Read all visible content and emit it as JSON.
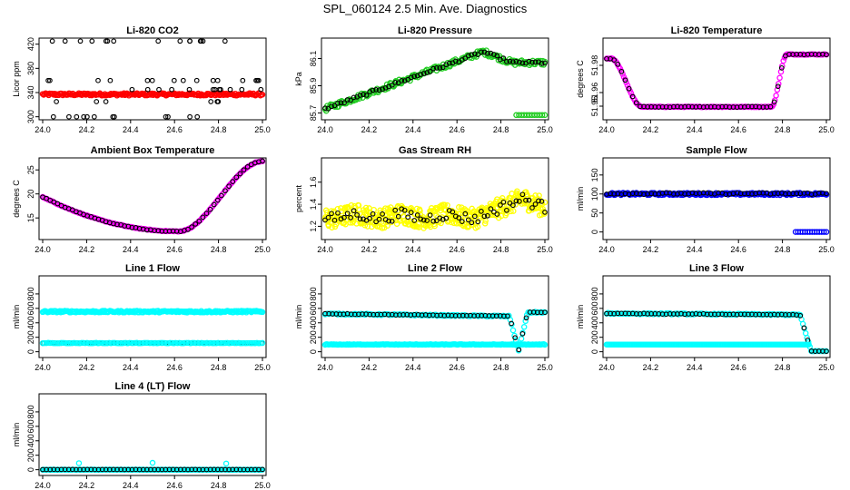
{
  "title": "SPL_060124  2.5 Min. Ave. Diagnostics",
  "colors": {
    "black": "#000000",
    "red": "#ff0000",
    "green": "#22cc22",
    "magenta": "#ff00ff",
    "yellow": "#ffff00",
    "blue": "#0000ff",
    "cyan": "#00ffff"
  },
  "chart_data": [
    {
      "type": "scatter",
      "title": "Li-820 CO2",
      "ylabel": "Licor ppm",
      "xlim": [
        24.0,
        25.0
      ],
      "ylim": [
        295,
        430
      ],
      "xticks": [
        "24.0",
        "24.2",
        "24.4",
        "24.6",
        "24.8",
        "25.0"
      ],
      "yticks": [
        {
          "v": 300,
          "l": "300"
        },
        {
          "v": 340,
          "l": "340"
        },
        {
          "v": 380,
          "l": "380"
        },
        {
          "v": 420,
          "l": "420"
        }
      ],
      "series": [
        {
          "name": "instant",
          "color": "red",
          "pattern": "flat",
          "a": 337,
          "b": 0,
          "noise": 2,
          "n": 220
        },
        {
          "name": "average",
          "color": "black",
          "pattern": "levels",
          "levels": [
            300,
            325,
            345,
            360,
            425
          ],
          "n": 60
        }
      ]
    },
    {
      "type": "scatter",
      "title": "Li-820 Pressure",
      "ylabel": "kPa",
      "xlim": [
        24.0,
        25.0
      ],
      "ylim": [
        85.65,
        86.25
      ],
      "xticks": [
        "24.0",
        "24.2",
        "24.4",
        "24.6",
        "24.8",
        "25.0"
      ],
      "yticks": [
        {
          "v": 85.7,
          "l": "85.7"
        },
        {
          "v": 85.9,
          "l": "85.9"
        },
        {
          "v": 86.1,
          "l": "86.1"
        }
      ],
      "series": [
        {
          "name": "instant",
          "color": "green",
          "pattern": "pressure",
          "noise": 0.02,
          "n": 200
        },
        {
          "name": "average",
          "color": "black",
          "pattern": "pressure",
          "noise": 0.01,
          "n": 70
        },
        {
          "name": "dropouts",
          "color": "green",
          "pattern": "segment",
          "x0": 24.87,
          "x1": 25.0,
          "a": 85.68,
          "b": 0.005,
          "n": 12
        }
      ]
    },
    {
      "type": "scatter",
      "title": "Li-820 Temperature",
      "ylabel": "degrees C",
      "xlim": [
        24.0,
        25.0
      ],
      "ylim": [
        51.94,
        52.0
      ],
      "xticks": [
        "24.0",
        "24.2",
        "24.4",
        "24.6",
        "24.8",
        "25.0"
      ],
      "yticks": [
        {
          "v": 51.95,
          "l": "51.95"
        },
        {
          "v": 51.96,
          "l": "51.96"
        },
        {
          "v": 51.98,
          "l": "51.98"
        }
      ],
      "series": [
        {
          "name": "instant",
          "color": "magenta",
          "pattern": "ltemp",
          "n": 180
        },
        {
          "name": "average",
          "color": "black",
          "pattern": "ltemp",
          "n": 60
        }
      ]
    },
    {
      "type": "scatter",
      "title": "Ambient Box Temperature",
      "ylabel": "degrees C",
      "xlim": [
        24.0,
        25.0
      ],
      "ylim": [
        10.5,
        27.5
      ],
      "xticks": [
        "24.0",
        "24.2",
        "24.4",
        "24.6",
        "24.8",
        "25.0"
      ],
      "yticks": [
        {
          "v": 15,
          "l": "15"
        },
        {
          "v": 20,
          "l": "20"
        },
        {
          "v": 25,
          "l": "25"
        }
      ],
      "series": [
        {
          "name": "instant",
          "color": "magenta",
          "pattern": "btemp",
          "n": 160
        },
        {
          "name": "average",
          "color": "black",
          "pattern": "btemp",
          "n": 60
        }
      ]
    },
    {
      "type": "scatter",
      "title": "Gas Stream RH",
      "ylabel": "percent",
      "xlim": [
        24.0,
        25.0
      ],
      "ylim": [
        1.08,
        1.82
      ],
      "xticks": [
        "24.0",
        "24.2",
        "24.4",
        "24.6",
        "24.8",
        "25.0"
      ],
      "yticks": [
        {
          "v": 1.2,
          "l": "1.2"
        },
        {
          "v": 1.4,
          "l": "1.4"
        },
        {
          "v": 1.6,
          "l": "1.6"
        }
      ],
      "series": [
        {
          "name": "instant",
          "color": "yellow",
          "pattern": "rh",
          "noise": 0.09,
          "n": 420
        },
        {
          "name": "average",
          "color": "black",
          "pattern": "rh",
          "noise": 0.05,
          "n": 70
        }
      ]
    },
    {
      "type": "scatter",
      "title": "Sample Flow",
      "ylabel": "ml/min",
      "xlim": [
        24.0,
        25.0
      ],
      "ylim": [
        -20,
        195
      ],
      "xticks": [
        "24.0",
        "24.2",
        "24.4",
        "24.6",
        "24.8",
        "25.0"
      ],
      "yticks": [
        {
          "v": 0,
          "l": "0"
        },
        {
          "v": 50,
          "l": "50"
        },
        {
          "v": 100,
          "l": "100"
        },
        {
          "v": 150,
          "l": "150"
        }
      ],
      "series": [
        {
          "name": "instant",
          "color": "blue",
          "pattern": "flat",
          "a": 100,
          "b": 0,
          "noise": 3,
          "n": 200
        },
        {
          "name": "average",
          "color": "black",
          "pattern": "flat",
          "a": 101,
          "b": 0,
          "noise": 2,
          "n": 60
        },
        {
          "name": "dropouts",
          "color": "blue",
          "pattern": "segment",
          "x0": 24.86,
          "x1": 25.0,
          "a": 0,
          "b": 0,
          "n": 14
        }
      ]
    },
    {
      "type": "scatter",
      "title": "Line 1 Flow",
      "ylabel": "ml/min",
      "xlim": [
        24.0,
        25.0
      ],
      "ylim": [
        -80,
        1050
      ],
      "xticks": [
        "24.0",
        "24.2",
        "24.4",
        "24.6",
        "24.8",
        "25.0"
      ],
      "yticks": [
        {
          "v": 0,
          "l": "0"
        },
        {
          "v": 200,
          "l": "200"
        },
        {
          "v": 400,
          "l": "400"
        },
        {
          "v": 600,
          "l": "600"
        },
        {
          "v": 800,
          "l": "800"
        }
      ],
      "series": [
        {
          "name": "instant",
          "color": "cyan",
          "pattern": "flat",
          "a": 555,
          "b": 0,
          "noise": 12,
          "n": 220
        },
        {
          "name": "average",
          "color": "black",
          "pattern": "flat",
          "a": 120,
          "b": 0,
          "noise": 3,
          "n": 60
        },
        {
          "name": "instant-low",
          "color": "cyan",
          "pattern": "flat",
          "a": 120,
          "b": 0,
          "noise": 3,
          "n": 120
        }
      ]
    },
    {
      "type": "scatter",
      "title": "Line 2 Flow",
      "ylabel": "ml/min",
      "xlim": [
        24.0,
        25.0
      ],
      "ylim": [
        -80,
        1050
      ],
      "xticks": [
        "24.0",
        "24.2",
        "24.4",
        "24.6",
        "24.8",
        "25.0"
      ],
      "yticks": [
        {
          "v": 0,
          "l": "0"
        },
        {
          "v": 200,
          "l": "200"
        },
        {
          "v": 400,
          "l": "400"
        },
        {
          "v": 600,
          "l": "600"
        },
        {
          "v": 800,
          "l": "800"
        }
      ],
      "series": [
        {
          "name": "instant-high",
          "color": "cyan",
          "pattern": "line2",
          "noise": 8,
          "n": 160
        },
        {
          "name": "average",
          "color": "black",
          "pattern": "line2",
          "noise": 4,
          "n": 60
        },
        {
          "name": "instant-low",
          "color": "cyan",
          "pattern": "flat",
          "a": 100,
          "b": 0,
          "noise": 4,
          "n": 200
        }
      ]
    },
    {
      "type": "scatter",
      "title": "Line 3 Flow",
      "ylabel": "ml/min",
      "xlim": [
        24.0,
        25.0
      ],
      "ylim": [
        -80,
        1050
      ],
      "xticks": [
        "24.0",
        "24.2",
        "24.4",
        "24.6",
        "24.8",
        "25.0"
      ],
      "yticks": [
        {
          "v": 0,
          "l": "0"
        },
        {
          "v": 200,
          "l": "200"
        },
        {
          "v": 400,
          "l": "400"
        },
        {
          "v": 600,
          "l": "600"
        },
        {
          "v": 800,
          "l": "800"
        }
      ],
      "series": [
        {
          "name": "instant-high",
          "color": "cyan",
          "pattern": "line3",
          "noise": 8,
          "n": 160
        },
        {
          "name": "average",
          "color": "black",
          "pattern": "line3",
          "noise": 4,
          "n": 60
        },
        {
          "name": "instant-low",
          "color": "cyan",
          "pattern": "segment",
          "x0": 24.0,
          "x1": 24.92,
          "a": 100,
          "b": 0,
          "n": 180
        }
      ]
    },
    {
      "type": "scatter",
      "title": "Line 4 (LT) Flow",
      "ylabel": "ml/min",
      "xlim": [
        24.0,
        25.0
      ],
      "ylim": [
        -80,
        1050
      ],
      "xticks": [
        "24.0",
        "24.2",
        "24.4",
        "24.6",
        "24.8",
        "25.0"
      ],
      "yticks": [
        {
          "v": 0,
          "l": "0"
        },
        {
          "v": 200,
          "l": "200"
        },
        {
          "v": 400,
          "l": "400"
        },
        {
          "v": 600,
          "l": "600"
        },
        {
          "v": 800,
          "l": "800"
        }
      ],
      "series": [
        {
          "name": "instant",
          "color": "cyan",
          "pattern": "flat",
          "a": 0,
          "b": 0,
          "noise": 2,
          "n": 200
        },
        {
          "name": "average",
          "color": "black",
          "pattern": "flat",
          "a": 2,
          "b": 0,
          "noise": 1,
          "n": 60
        },
        {
          "name": "spikes",
          "color": "cyan",
          "pattern": "points",
          "pts": [
            [
              24.165,
              90
            ],
            [
              24.5,
              95
            ],
            [
              24.835,
              85
            ]
          ]
        }
      ]
    }
  ]
}
